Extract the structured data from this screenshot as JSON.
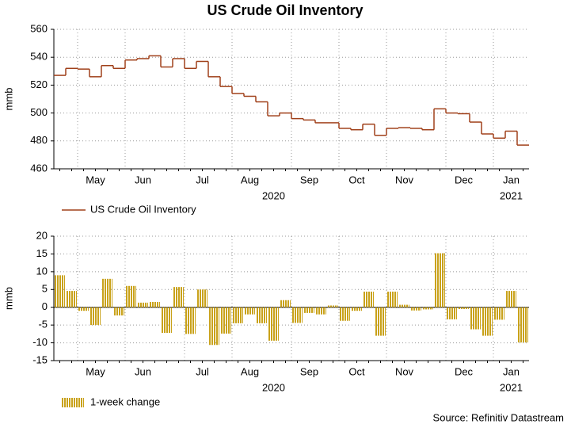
{
  "title": "US Crude Oil Inventory",
  "source": "Source: Refinitiv Datastream",
  "chart_data": [
    {
      "type": "line",
      "categories": [
        null,
        null,
        null,
        "May",
        null,
        null,
        null,
        "Jun",
        null,
        null,
        null,
        null,
        "Jul",
        null,
        null,
        null,
        "Aug",
        null,
        null,
        null,
        null,
        "Sep",
        null,
        null,
        null,
        "Oct",
        null,
        null,
        null,
        "Nov",
        null,
        null,
        null,
        null,
        "Dec",
        null,
        null,
        null,
        "Jan",
        null
      ],
      "years": [
        null,
        null,
        null,
        null,
        null,
        null,
        null,
        null,
        null,
        null,
        null,
        null,
        null,
        null,
        null,
        null,
        null,
        null,
        "2020",
        null,
        null,
        null,
        null,
        null,
        null,
        null,
        null,
        null,
        null,
        null,
        null,
        null,
        null,
        null,
        null,
        null,
        null,
        null,
        "2021",
        null
      ],
      "ylabel": "mmb",
      "ylim": [
        460,
        560
      ],
      "yticks": [
        460,
        480,
        500,
        520,
        540,
        560
      ],
      "grid": true,
      "series": [
        {
          "name": "US Crude Oil Inventory",
          "color": "#a0401a",
          "values": [
            527,
            532,
            531.5,
            526,
            534,
            532,
            538,
            539,
            541,
            533,
            539,
            532,
            537,
            526,
            519,
            514,
            512,
            508,
            498,
            500,
            496,
            495,
            493,
            493,
            489,
            488,
            492,
            484,
            489,
            489.5,
            489,
            488,
            503,
            500,
            499.5,
            493.5,
            485,
            482,
            487,
            477
          ]
        }
      ]
    },
    {
      "type": "bar",
      "categories": [
        null,
        null,
        null,
        "May",
        null,
        null,
        null,
        "Jun",
        null,
        null,
        null,
        null,
        "Jul",
        null,
        null,
        null,
        "Aug",
        null,
        null,
        null,
        null,
        "Sep",
        null,
        null,
        null,
        "Oct",
        null,
        null,
        null,
        "Nov",
        null,
        null,
        null,
        null,
        "Dec",
        null,
        null,
        null,
        "Jan",
        null
      ],
      "years": [
        null,
        null,
        null,
        null,
        null,
        null,
        null,
        null,
        null,
        null,
        null,
        null,
        null,
        null,
        null,
        null,
        null,
        null,
        "2020",
        null,
        null,
        null,
        null,
        null,
        null,
        null,
        null,
        null,
        null,
        null,
        null,
        null,
        null,
        null,
        null,
        null,
        null,
        null,
        "2021",
        null
      ],
      "ylabel": "mmb",
      "ylim": [
        -15,
        20
      ],
      "yticks": [
        -15,
        -10,
        -5,
        0,
        5,
        10,
        15,
        20
      ],
      "grid": true,
      "series": [
        {
          "name": "1-week change",
          "color": "#c9a21a",
          "values": [
            9,
            4.6,
            -1,
            -5,
            8,
            -2.3,
            6,
            1.3,
            1.5,
            -7.2,
            5.7,
            -7.5,
            5,
            -10.6,
            -7.4,
            -4.5,
            -2,
            -4.5,
            -9.4,
            2,
            -4.4,
            -1.6,
            -2,
            0.5,
            -3.8,
            -1,
            4.4,
            -8,
            4.4,
            0.7,
            -0.9,
            -0.6,
            15.2,
            -3.4,
            -0.5,
            -6.2,
            -8,
            -3.5,
            4.6,
            -9.9
          ]
        }
      ]
    }
  ]
}
